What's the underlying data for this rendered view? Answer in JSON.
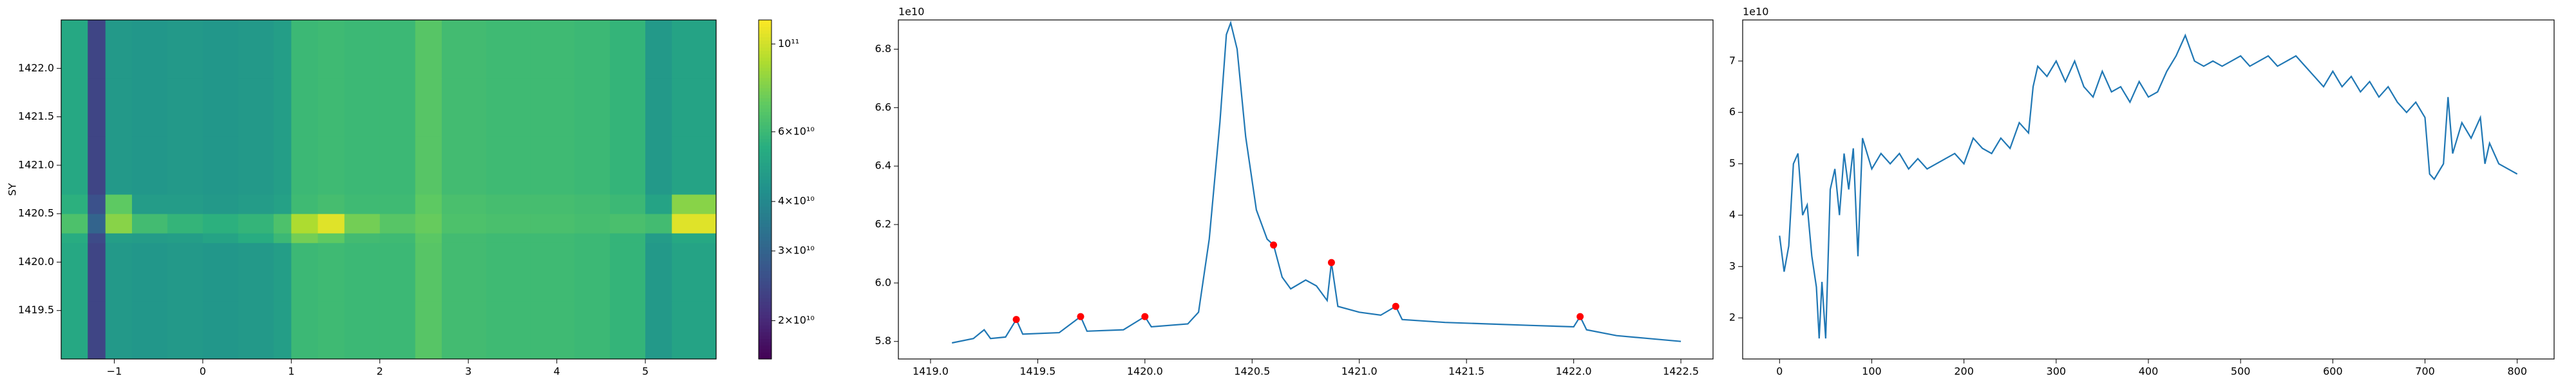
{
  "chart_data": [
    {
      "type": "heatmap",
      "ylabel": "SY",
      "colormap": "viridis",
      "color_scale": "log",
      "xlim": [
        -1.6,
        5.8
      ],
      "ylim": [
        1419.0,
        1422.5
      ],
      "xticks": [
        {
          "value": -1,
          "label": "−1"
        },
        0,
        1,
        2,
        3,
        4,
        5
      ],
      "yticks": [
        1419.5,
        {
          "value": 1420,
          "label": "1420.0"
        },
        1420.5,
        {
          "value": 1421,
          "label": "1421.0"
        },
        1421.5,
        {
          "value": 1422,
          "label": "1422.0"
        }
      ],
      "x_edges": [
        -1.6,
        -1.3,
        -1.1,
        -0.8,
        -0.4,
        0,
        0.4,
        0.8,
        1.0,
        1.3,
        1.6,
        2.0,
        2.4,
        2.7,
        3.2,
        3.7,
        4.2,
        4.6,
        5.0,
        5.3,
        5.8
      ],
      "y_edges": [
        1419.0,
        1419.6,
        1420.2,
        1420.3,
        1420.5,
        1420.7,
        1421.3,
        1421.9,
        1422.5
      ],
      "z": [
        [
          52000000000.0,
          24000000000.0,
          46000000000.0,
          45000000000.0,
          46000000000.0,
          45000000000.0,
          46000000000.0,
          48000000000.0,
          60000000000.0,
          61000000000.0,
          60000000000.0,
          60000000000.0,
          68000000000.0,
          62000000000.0,
          61000000000.0,
          61000000000.0,
          60000000000.0,
          58000000000.0,
          46000000000.0,
          50000000000.0
        ],
        [
          52000000000.0,
          24000000000.0,
          46000000000.0,
          45000000000.0,
          46000000000.0,
          45000000000.0,
          46000000000.0,
          48000000000.0,
          60000000000.0,
          61000000000.0,
          60000000000.0,
          60000000000.0,
          68000000000.0,
          62000000000.0,
          61000000000.0,
          61000000000.0,
          60000000000.0,
          58000000000.0,
          46000000000.0,
          50000000000.0
        ],
        [
          54000000000.0,
          25000000000.0,
          48000000000.0,
          47000000000.0,
          48000000000.0,
          50000000000.0,
          54000000000.0,
          60000000000.0,
          75000000000.0,
          70000000000.0,
          62000000000.0,
          61000000000.0,
          69000000000.0,
          62000000000.0,
          61000000000.0,
          61000000000.0,
          60000000000.0,
          58000000000.0,
          47000000000.0,
          52000000000.0
        ],
        [
          65000000000.0,
          30000000000.0,
          80000000000.0,
          62000000000.0,
          58000000000.0,
          56000000000.0,
          58000000000.0,
          65000000000.0,
          90000000000.0,
          105000000000.0,
          75000000000.0,
          68000000000.0,
          72000000000.0,
          65000000000.0,
          64000000000.0,
          64000000000.0,
          63000000000.0,
          64000000000.0,
          62000000000.0,
          105000000000.0
        ],
        [
          56000000000.0,
          26000000000.0,
          70000000000.0,
          47000000000.0,
          47000000000.0,
          46000000000.0,
          47000000000.0,
          49000000000.0,
          61000000000.0,
          63000000000.0,
          61000000000.0,
          61000000000.0,
          70000000000.0,
          64000000000.0,
          63000000000.0,
          63000000000.0,
          62000000000.0,
          60000000000.0,
          50000000000.0,
          80000000000.0
        ],
        [
          52000000000.0,
          24000000000.0,
          46000000000.0,
          45000000000.0,
          46000000000.0,
          45000000000.0,
          46000000000.0,
          48000000000.0,
          60000000000.0,
          61000000000.0,
          60000000000.0,
          60000000000.0,
          68000000000.0,
          62000000000.0,
          61000000000.0,
          61000000000.0,
          60000000000.0,
          58000000000.0,
          46000000000.0,
          50000000000.0
        ],
        [
          52000000000.0,
          24000000000.0,
          46000000000.0,
          45000000000.0,
          46000000000.0,
          45000000000.0,
          46000000000.0,
          48000000000.0,
          60000000000.0,
          61000000000.0,
          60000000000.0,
          60000000000.0,
          68000000000.0,
          62000000000.0,
          61000000000.0,
          61000000000.0,
          60000000000.0,
          58000000000.0,
          46000000000.0,
          50000000000.0
        ],
        [
          52000000000.0,
          24000000000.0,
          46000000000.0,
          45000000000.0,
          46000000000.0,
          45000000000.0,
          46000000000.0,
          48000000000.0,
          60000000000.0,
          61000000000.0,
          60000000000.0,
          60000000000.0,
          68000000000.0,
          62000000000.0,
          61000000000.0,
          61000000000.0,
          60000000000.0,
          58000000000.0,
          46000000000.0,
          50000000000.0
        ]
      ],
      "clim": [
        16000000000.0,
        115000000000.0
      ],
      "cticks": [
        {
          "value": 20000000000.0,
          "label": "2×10¹⁰"
        },
        {
          "value": 30000000000.0,
          "label": "3×10¹⁰"
        },
        {
          "value": 40000000000.0,
          "label": "4×10¹⁰"
        },
        {
          "value": 60000000000.0,
          "label": "6×10¹⁰"
        },
        {
          "value": 100000000000.0,
          "label": "10¹¹"
        }
      ]
    },
    {
      "type": "line",
      "y_offset_text": "1e10",
      "xlim": [
        1418.85,
        1422.65
      ],
      "ylim": [
        5.74,
        6.9
      ],
      "xticks": [
        {
          "value": 1419,
          "label": "1419.0"
        },
        1419.5,
        {
          "value": 1420,
          "label": "1420.0"
        },
        1420.5,
        {
          "value": 1421,
          "label": "1421.0"
        },
        1421.5,
        {
          "value": 1422,
          "label": "1422.0"
        },
        1422.5
      ],
      "yticks": [
        5.8,
        {
          "value": 6,
          "label": "6.0"
        },
        6.2,
        6.4,
        6.6,
        6.8
      ],
      "series": [
        {
          "type": "line",
          "color": "#1f77b4",
          "x": [
            1419.1,
            1419.2,
            1419.25,
            1419.28,
            1419.35,
            1419.4,
            1419.43,
            1419.6,
            1419.7,
            1419.73,
            1419.9,
            1420.0,
            1420.03,
            1420.2,
            1420.25,
            1420.3,
            1420.35,
            1420.38,
            1420.4,
            1420.43,
            1420.47,
            1420.52,
            1420.57,
            1420.6,
            1420.64,
            1420.68,
            1420.75,
            1420.8,
            1420.85,
            1420.87,
            1420.9,
            1421.0,
            1421.1,
            1421.17,
            1421.2,
            1421.4,
            1421.6,
            1421.8,
            1422.0,
            1422.03,
            1422.06,
            1422.2,
            1422.35,
            1422.5
          ],
          "values": [
            5.795,
            5.81,
            5.84,
            5.81,
            5.815,
            5.875,
            5.825,
            5.83,
            5.885,
            5.835,
            5.84,
            5.885,
            5.85,
            5.86,
            5.9,
            6.15,
            6.55,
            6.85,
            6.89,
            6.8,
            6.5,
            6.25,
            6.15,
            6.13,
            6.02,
            5.98,
            6.01,
            5.99,
            5.94,
            6.07,
            5.92,
            5.9,
            5.89,
            5.92,
            5.875,
            5.865,
            5.86,
            5.855,
            5.85,
            5.885,
            5.84,
            5.82,
            5.81,
            5.8
          ]
        },
        {
          "type": "scatter",
          "color": "#ff0000",
          "x": [
            1419.4,
            1419.7,
            1420.0,
            1420.6,
            1420.87,
            1421.17,
            1422.03
          ],
          "values": [
            5.875,
            5.885,
            5.885,
            6.13,
            6.07,
            5.92,
            5.885
          ]
        }
      ]
    },
    {
      "type": "line",
      "y_offset_text": "1e10",
      "xlim": [
        -40,
        840
      ],
      "ylim": [
        1.2,
        7.8
      ],
      "xticks": [
        0,
        100,
        200,
        300,
        400,
        500,
        600,
        700,
        800
      ],
      "yticks": [
        2,
        3,
        4,
        5,
        6,
        7
      ],
      "series": [
        {
          "type": "line",
          "color": "#1f77b4",
          "x": [
            0,
            5,
            10,
            15,
            20,
            25,
            30,
            35,
            40,
            43,
            46,
            50,
            55,
            60,
            65,
            70,
            75,
            80,
            85,
            90,
            100,
            110,
            120,
            130,
            140,
            150,
            160,
            170,
            180,
            190,
            200,
            210,
            220,
            230,
            240,
            250,
            260,
            270,
            275,
            280,
            290,
            300,
            310,
            320,
            330,
            340,
            350,
            360,
            370,
            380,
            390,
            400,
            410,
            420,
            430,
            440,
            450,
            460,
            470,
            480,
            490,
            500,
            510,
            520,
            530,
            540,
            550,
            560,
            570,
            580,
            590,
            600,
            610,
            620,
            630,
            640,
            650,
            660,
            670,
            680,
            690,
            700,
            705,
            710,
            720,
            725,
            730,
            740,
            750,
            760,
            765,
            770,
            780,
            790,
            800
          ],
          "values": [
            3.6,
            2.9,
            3.4,
            5.0,
            5.2,
            4.0,
            4.2,
            3.2,
            2.6,
            1.6,
            2.7,
            1.6,
            4.5,
            4.9,
            4.0,
            5.2,
            4.5,
            5.3,
            3.2,
            5.5,
            4.9,
            5.2,
            5.0,
            5.2,
            4.9,
            5.1,
            4.9,
            5.0,
            5.1,
            5.2,
            5.0,
            5.5,
            5.3,
            5.2,
            5.5,
            5.3,
            5.8,
            5.6,
            6.5,
            6.9,
            6.7,
            7.0,
            6.6,
            7.0,
            6.5,
            6.3,
            6.8,
            6.4,
            6.5,
            6.2,
            6.6,
            6.3,
            6.4,
            6.8,
            7.1,
            7.5,
            7.0,
            6.9,
            7.0,
            6.9,
            7.0,
            7.1,
            6.9,
            7.0,
            7.1,
            6.9,
            7.0,
            7.1,
            6.9,
            6.7,
            6.5,
            6.8,
            6.5,
            6.7,
            6.4,
            6.6,
            6.3,
            6.5,
            6.2,
            6.0,
            6.2,
            5.9,
            4.8,
            4.7,
            5.0,
            6.3,
            5.2,
            5.8,
            5.5,
            5.9,
            5.0,
            5.4,
            5.0,
            4.9,
            4.8
          ]
        }
      ]
    }
  ]
}
